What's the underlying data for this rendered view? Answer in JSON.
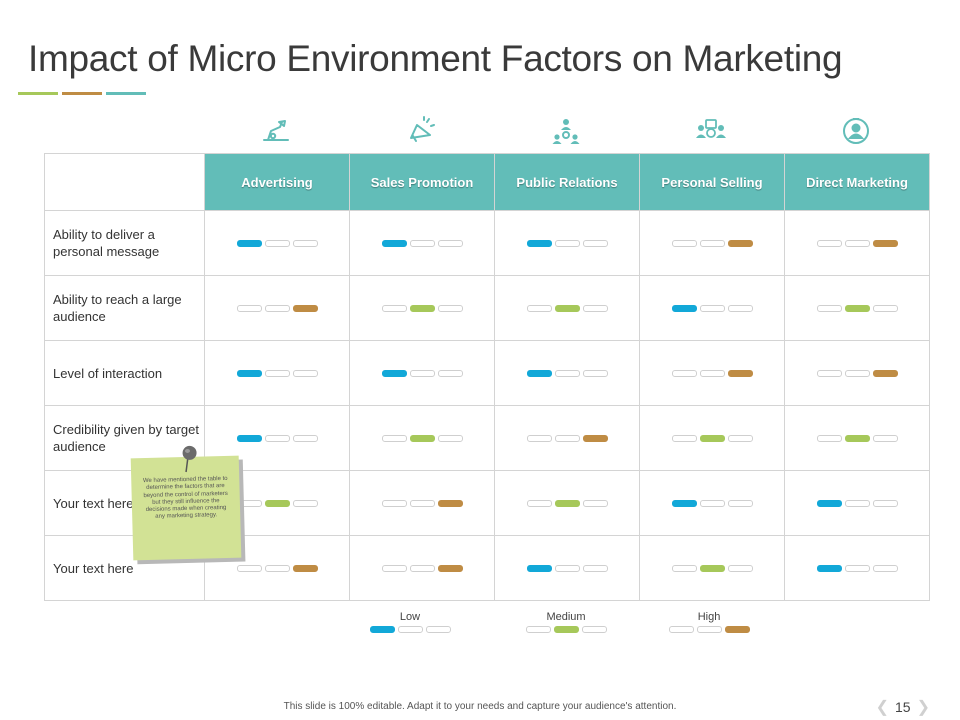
{
  "title": "Impact of Micro Environment Factors on Marketing",
  "colors": {
    "low": "#12a8d8",
    "medium": "#a6c85a",
    "high": "#bf8c44",
    "header": "#62bdb8",
    "bar1": "#a6c85a",
    "bar2": "#bf8c44",
    "bar3": "#62bdb8"
  },
  "icons": [
    "advertising-icon",
    "megaphone-icon",
    "network-icon",
    "personal-selling-icon",
    "direct-marketing-icon"
  ],
  "table": {
    "columns": [
      "Advertising",
      "Sales Promotion",
      "Public Relations",
      "Personal Selling",
      "Direct Marketing"
    ],
    "rows": [
      {
        "label": "Ability to deliver a personal message",
        "ratings": [
          "low",
          "low",
          "low",
          "high",
          "high"
        ]
      },
      {
        "label": "Ability to reach a large audience",
        "ratings": [
          "high",
          "medium",
          "medium",
          "low",
          "medium"
        ]
      },
      {
        "label": "Level of interaction",
        "ratings": [
          "low",
          "low",
          "low",
          "high",
          "high"
        ]
      },
      {
        "label": "Credibility given by target audience",
        "ratings": [
          "low",
          "medium",
          "high",
          "medium",
          "medium"
        ]
      },
      {
        "label": "Your text here",
        "ratings": [
          "medium",
          "high",
          "medium",
          "low",
          "low"
        ]
      },
      {
        "label": "Your text here",
        "ratings": [
          "high",
          "high",
          "low",
          "medium",
          "low"
        ]
      }
    ]
  },
  "legend": {
    "low": "Low",
    "medium": "Medium",
    "high": "High"
  },
  "note": "We have mentioned the table to determine the factors that are beyond the control of marketers but they still influence the decisions made when creating any marketing strategy.",
  "footer": "This slide is 100% editable. Adapt it to your needs and capture your audience's attention.",
  "page_number": "15"
}
